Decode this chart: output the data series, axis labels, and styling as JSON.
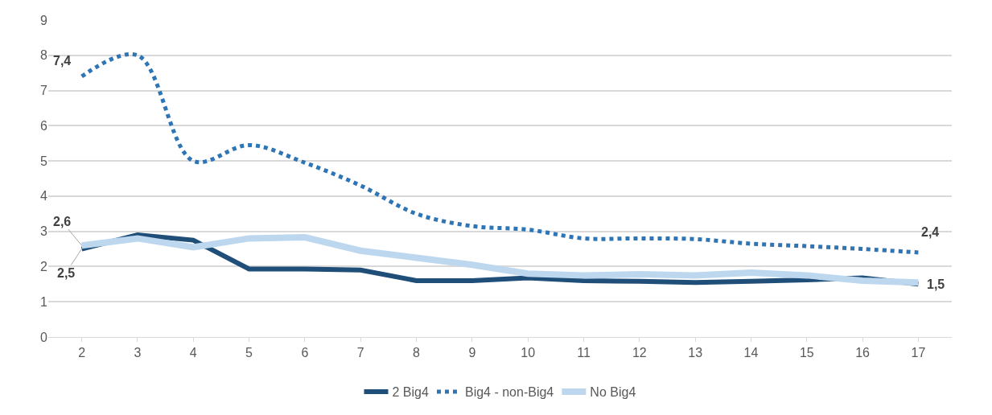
{
  "chart_data": {
    "type": "line",
    "categories": [
      "2",
      "3",
      "4",
      "5",
      "6",
      "7",
      "8",
      "9",
      "10",
      "11",
      "12",
      "13",
      "14",
      "15",
      "16",
      "17"
    ],
    "series": [
      {
        "name": "2 Big4",
        "color": "#1f4e79",
        "line_style": "solid",
        "values": [
          2.5,
          2.9,
          2.75,
          1.93,
          1.93,
          1.9,
          1.6,
          1.6,
          1.68,
          1.6,
          1.58,
          1.55,
          1.58,
          1.62,
          1.68,
          1.5
        ],
        "value_labels": [
          "2,5",
          null,
          null,
          null,
          null,
          null,
          null,
          null,
          null,
          null,
          null,
          null,
          null,
          null,
          null,
          "1,5"
        ]
      },
      {
        "name": "Big4 - non-Big4",
        "color": "#2e75b6",
        "line_style": "dotted",
        "values": [
          7.4,
          8.0,
          5.0,
          5.45,
          4.95,
          4.3,
          3.5,
          3.15,
          3.05,
          2.8,
          2.8,
          2.78,
          2.65,
          2.58,
          2.5,
          2.4
        ],
        "value_labels": [
          "7,4",
          null,
          null,
          null,
          null,
          null,
          null,
          null,
          null,
          null,
          null,
          null,
          null,
          null,
          null,
          "2,4"
        ]
      },
      {
        "name": "No Big4",
        "color": "#bdd7ee",
        "line_style": "solid",
        "values": [
          2.6,
          2.8,
          2.55,
          2.8,
          2.83,
          2.45,
          2.25,
          2.05,
          1.8,
          1.75,
          1.78,
          1.75,
          1.83,
          1.75,
          1.6,
          1.55
        ],
        "value_labels": [
          "2,6",
          null,
          null,
          null,
          null,
          null,
          null,
          null,
          null,
          null,
          null,
          null,
          null,
          null,
          null,
          null
        ]
      }
    ],
    "ylim": [
      0,
      9
    ],
    "yticks": [
      0,
      1,
      2,
      3,
      4,
      5,
      6,
      7,
      8,
      9
    ],
    "grid": "y",
    "legend": "bottom",
    "marker": "none"
  }
}
